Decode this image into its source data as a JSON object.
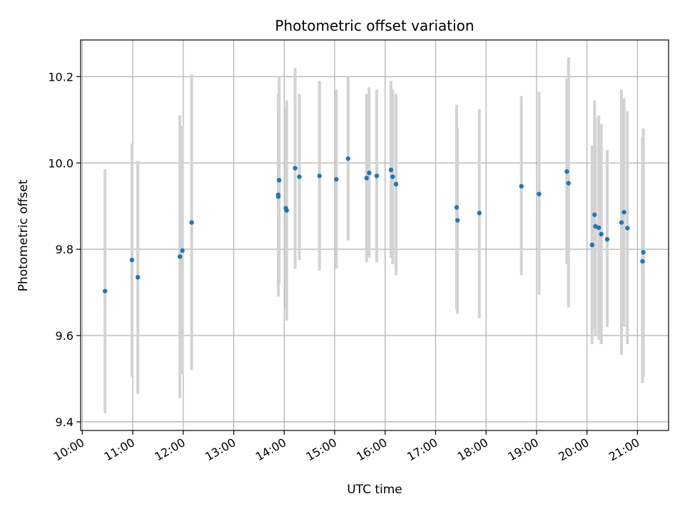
{
  "chart_data": {
    "type": "scatter",
    "title": "Photometric offset variation",
    "xlabel": "UTC time",
    "ylabel": "Photometric offset",
    "x_ticks": [
      "10:00",
      "11:00",
      "12:00",
      "13:00",
      "14:00",
      "15:00",
      "16:00",
      "17:00",
      "18:00",
      "19:00",
      "20:00",
      "21:00"
    ],
    "y_ticks": [
      "9.4",
      "9.6",
      "9.8",
      "10.0",
      "10.2"
    ],
    "xlim": [
      "09:58",
      "21:37"
    ],
    "ylim": [
      9.38,
      10.285
    ],
    "grid": true,
    "point_color": "#1f77b4",
    "errorbar_color": "#d3d3d3",
    "points": [
      {
        "t": "10:27",
        "y": 9.703,
        "lo": 9.42,
        "hi": 9.985
      },
      {
        "t": "10:59",
        "y": 9.775,
        "lo": 9.505,
        "hi": 10.045
      },
      {
        "t": "11:06",
        "y": 9.735,
        "lo": 9.465,
        "hi": 10.005
      },
      {
        "t": "11:56",
        "y": 9.783,
        "lo": 9.455,
        "hi": 10.11
      },
      {
        "t": "11:59",
        "y": 9.797,
        "lo": 9.51,
        "hi": 10.085
      },
      {
        "t": "12:10",
        "y": 9.862,
        "lo": 9.52,
        "hi": 10.205
      },
      {
        "t": "13:53",
        "y": 9.926,
        "lo": 9.69,
        "hi": 10.16
      },
      {
        "t": "13:53",
        "y": 9.922,
        "lo": 9.72,
        "hi": 10.13
      },
      {
        "t": "13:54",
        "y": 9.96,
        "lo": 9.72,
        "hi": 10.2
      },
      {
        "t": "14:02",
        "y": 9.895,
        "lo": 9.66,
        "hi": 10.13
      },
      {
        "t": "14:03",
        "y": 9.89,
        "lo": 9.635,
        "hi": 10.145
      },
      {
        "t": "14:13",
        "y": 9.988,
        "lo": 9.755,
        "hi": 10.22
      },
      {
        "t": "14:18",
        "y": 9.968,
        "lo": 9.775,
        "hi": 10.16
      },
      {
        "t": "14:42",
        "y": 9.97,
        "lo": 9.75,
        "hi": 10.19
      },
      {
        "t": "15:02",
        "y": 9.962,
        "lo": 9.755,
        "hi": 10.17
      },
      {
        "t": "15:16",
        "y": 10.01,
        "lo": 9.82,
        "hi": 10.2
      },
      {
        "t": "15:38",
        "y": 9.965,
        "lo": 9.77,
        "hi": 10.16
      },
      {
        "t": "15:41",
        "y": 9.977,
        "lo": 9.78,
        "hi": 10.175
      },
      {
        "t": "15:50",
        "y": 9.97,
        "lo": 9.77,
        "hi": 10.17
      },
      {
        "t": "16:07",
        "y": 9.984,
        "lo": 9.78,
        "hi": 10.19
      },
      {
        "t": "16:09",
        "y": 9.968,
        "lo": 9.765,
        "hi": 10.17
      },
      {
        "t": "16:13",
        "y": 9.951,
        "lo": 9.74,
        "hi": 10.16
      },
      {
        "t": "17:25",
        "y": 9.897,
        "lo": 9.66,
        "hi": 10.135
      },
      {
        "t": "17:26",
        "y": 9.867,
        "lo": 9.65,
        "hi": 10.08
      },
      {
        "t": "17:52",
        "y": 9.884,
        "lo": 9.64,
        "hi": 10.125
      },
      {
        "t": "18:42",
        "y": 9.946,
        "lo": 9.74,
        "hi": 10.155
      },
      {
        "t": "19:03",
        "y": 9.928,
        "lo": 9.695,
        "hi": 10.165
      },
      {
        "t": "19:36",
        "y": 9.98,
        "lo": 9.765,
        "hi": 10.195
      },
      {
        "t": "19:38",
        "y": 9.953,
        "lo": 9.665,
        "hi": 10.245
      },
      {
        "t": "20:06",
        "y": 9.81,
        "lo": 9.58,
        "hi": 10.04
      },
      {
        "t": "20:09",
        "y": 9.88,
        "lo": 9.615,
        "hi": 10.145
      },
      {
        "t": "20:10",
        "y": 9.853,
        "lo": 9.6,
        "hi": 10.105
      },
      {
        "t": "20:14",
        "y": 9.85,
        "lo": 9.59,
        "hi": 10.11
      },
      {
        "t": "20:17",
        "y": 9.835,
        "lo": 9.58,
        "hi": 10.09
      },
      {
        "t": "20:24",
        "y": 9.823,
        "lo": 9.62,
        "hi": 10.03
      },
      {
        "t": "20:41",
        "y": 9.862,
        "lo": 9.555,
        "hi": 10.17
      },
      {
        "t": "20:44",
        "y": 9.886,
        "lo": 9.62,
        "hi": 10.15
      },
      {
        "t": "20:48",
        "y": 9.849,
        "lo": 9.58,
        "hi": 10.12
      },
      {
        "t": "21:06",
        "y": 9.772,
        "lo": 9.49,
        "hi": 10.06
      },
      {
        "t": "21:07",
        "y": 9.793,
        "lo": 9.505,
        "hi": 10.08
      }
    ]
  }
}
